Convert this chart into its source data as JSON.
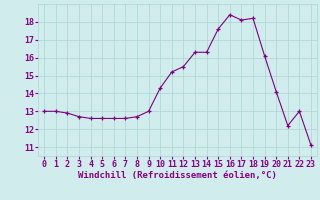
{
  "x": [
    0,
    1,
    2,
    3,
    4,
    5,
    6,
    7,
    8,
    9,
    10,
    11,
    12,
    13,
    14,
    15,
    16,
    17,
    18,
    19,
    20,
    21,
    22,
    23
  ],
  "y": [
    13.0,
    13.0,
    12.9,
    12.7,
    12.6,
    12.6,
    12.6,
    12.6,
    12.7,
    13.0,
    14.3,
    15.2,
    15.5,
    16.3,
    16.3,
    17.6,
    18.4,
    18.1,
    18.2,
    16.1,
    14.1,
    12.2,
    13.0,
    11.1
  ],
  "line_color": "#800080",
  "marker": "+",
  "background_color": "#d0ecec",
  "grid_color": "#aad4d4",
  "xlabel": "Windchill (Refroidissement éolien,°C)",
  "xlabel_fontsize": 6.5,
  "tick_fontsize": 6.0,
  "label_color": "#880088",
  "ylim": [
    10.5,
    19.0
  ],
  "xlim": [
    -0.5,
    23.5
  ],
  "yticks": [
    11,
    12,
    13,
    14,
    15,
    16,
    17,
    18
  ],
  "xticks": [
    0,
    1,
    2,
    3,
    4,
    5,
    6,
    7,
    8,
    9,
    10,
    11,
    12,
    13,
    14,
    15,
    16,
    17,
    18,
    19,
    20,
    21,
    22,
    23
  ]
}
